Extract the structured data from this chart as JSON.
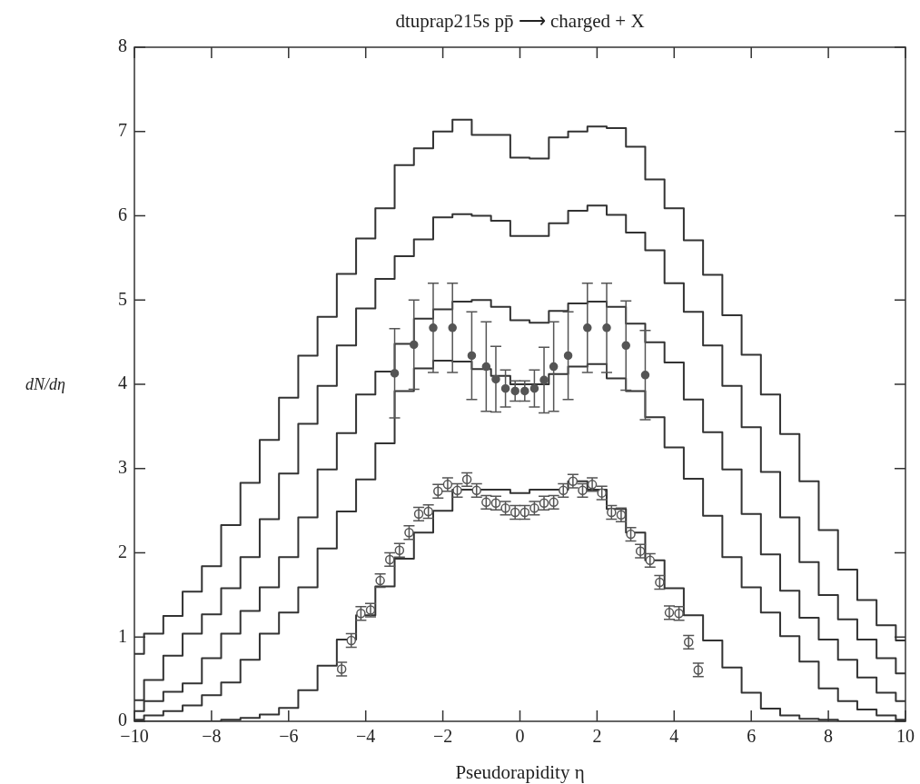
{
  "chart_data": {
    "type": "step",
    "title": "dtuprap215s pp̄ ⟶ charged + X",
    "xlabel": "Pseudorapidity η",
    "ylabel": "dN/dη",
    "xlim": [
      -10,
      10
    ],
    "xticks": [
      -10,
      -8,
      -6,
      -4,
      -2,
      0,
      2,
      4,
      6,
      8,
      10
    ],
    "ylim": [
      0,
      8
    ],
    "yticks": [
      0,
      1,
      2,
      3,
      4,
      5,
      6,
      7,
      8
    ],
    "grid": false,
    "legend": false,
    "x": [
      -10,
      -9.5,
      -9,
      -8.5,
      -8,
      -7.5,
      -7,
      -6.5,
      -6,
      -5.5,
      -5,
      -4.5,
      -4,
      -3.5,
      -3,
      -2.5,
      -2,
      -1.5,
      -1,
      -0.5,
      0,
      0.5,
      1,
      1.5,
      2,
      2.5,
      3,
      3.5,
      4,
      4.5,
      5,
      5.5,
      6,
      6.5,
      7,
      7.5,
      8,
      8.5,
      9,
      9.5,
      10
    ],
    "series": [
      {
        "color": "#333333",
        "values": [
          0.8,
          1.04,
          1.25,
          1.54,
          1.84,
          2.33,
          2.83,
          3.34,
          3.84,
          4.34,
          4.8,
          5.31,
          5.73,
          6.09,
          6.6,
          6.8,
          7.0,
          7.14,
          6.96,
          6.96,
          6.69,
          6.68,
          6.93,
          7.0,
          7.06,
          7.04,
          6.82,
          6.43,
          6.09,
          5.71,
          5.3,
          4.82,
          4.35,
          3.88,
          3.41,
          2.85,
          2.27,
          1.8,
          1.44,
          1.14,
          0.96
        ]
      },
      {
        "color": "#333333",
        "values": [
          0.25,
          0.49,
          0.78,
          1.04,
          1.27,
          1.58,
          1.95,
          2.4,
          2.94,
          3.53,
          3.98,
          4.46,
          4.9,
          5.25,
          5.52,
          5.72,
          5.98,
          6.02,
          6.0,
          5.94,
          5.76,
          5.76,
          5.91,
          6.06,
          6.12,
          6.01,
          5.8,
          5.59,
          5.2,
          4.86,
          4.46,
          3.98,
          3.49,
          2.96,
          2.42,
          1.89,
          1.5,
          1.21,
          0.97,
          0.75,
          0.57
        ]
      },
      {
        "color": "#333333",
        "values": [
          0.12,
          0.24,
          0.35,
          0.45,
          0.75,
          1.04,
          1.31,
          1.59,
          1.95,
          2.42,
          2.99,
          3.42,
          3.88,
          4.15,
          4.48,
          4.78,
          4.89,
          4.98,
          5.0,
          4.92,
          4.76,
          4.73,
          4.87,
          4.96,
          4.98,
          4.92,
          4.72,
          4.5,
          4.26,
          3.82,
          3.43,
          2.99,
          2.46,
          1.98,
          1.55,
          1.23,
          0.97,
          0.73,
          0.52,
          0.34,
          0.24
        ]
      },
      {
        "color": "#333333",
        "values": [
          0.02,
          0.07,
          0.12,
          0.19,
          0.31,
          0.46,
          0.73,
          1.04,
          1.29,
          1.59,
          2.05,
          2.49,
          2.87,
          3.3,
          3.92,
          4.19,
          4.28,
          4.27,
          4.18,
          4.1,
          4.0,
          4.0,
          4.12,
          4.21,
          4.24,
          4.07,
          3.92,
          3.61,
          3.25,
          2.88,
          2.44,
          1.95,
          1.59,
          1.29,
          1.01,
          0.71,
          0.39,
          0.24,
          0.14,
          0.07,
          0.02
        ]
      },
      {
        "color": "#333333",
        "values": [
          0,
          0,
          0,
          0,
          0,
          0.02,
          0.04,
          0.08,
          0.16,
          0.37,
          0.66,
          0.97,
          1.26,
          1.6,
          1.93,
          2.24,
          2.5,
          2.75,
          2.75,
          2.75,
          2.71,
          2.75,
          2.75,
          2.85,
          2.75,
          2.52,
          2.24,
          1.91,
          1.58,
          1.26,
          0.96,
          0.64,
          0.34,
          0.15,
          0.07,
          0.03,
          0.02,
          0,
          0,
          0,
          0
        ]
      },
      {
        "type": "scatter",
        "marker": "circle",
        "color": "#555555",
        "x": [
          -3.25,
          -2.75,
          -2.25,
          -1.75,
          -1.25,
          -0.875,
          -0.625,
          -0.375,
          -0.125,
          0.125,
          0.375,
          0.625,
          0.875,
          1.25,
          1.75,
          2.25,
          2.75,
          3.25
        ],
        "values": [
          4.13,
          4.47,
          4.67,
          4.67,
          4.34,
          4.21,
          4.06,
          3.95,
          3.92,
          3.92,
          3.95,
          4.05,
          4.21,
          4.34,
          4.67,
          4.67,
          4.46,
          4.11
        ],
        "errors": [
          0.53,
          0.53,
          0.53,
          0.53,
          0.52,
          0.53,
          0.39,
          0.22,
          0.12,
          0.12,
          0.22,
          0.39,
          0.53,
          0.52,
          0.53,
          0.53,
          0.53,
          0.53
        ]
      },
      {
        "type": "scatter",
        "marker": "circle",
        "color": "#555555",
        "x": [
          -4.625,
          -4.375,
          -4.125,
          -3.875,
          -3.625,
          -3.375,
          -3.125,
          -2.875,
          -2.625,
          -2.375,
          -2.125,
          -1.875,
          -1.625,
          -1.375,
          -1.125,
          -0.875,
          -0.625,
          -0.375,
          -0.125,
          0.125,
          0.375,
          0.625,
          0.875,
          1.125,
          1.375,
          1.625,
          1.875,
          2.125,
          2.375,
          2.625,
          2.875,
          3.125,
          3.375,
          3.625,
          3.875,
          4.125,
          4.375,
          4.625
        ],
        "values": [
          0.62,
          0.96,
          1.28,
          1.32,
          1.67,
          1.92,
          2.03,
          2.24,
          2.46,
          2.49,
          2.73,
          2.81,
          2.74,
          2.87,
          2.74,
          2.6,
          2.59,
          2.53,
          2.48,
          2.48,
          2.53,
          2.59,
          2.6,
          2.74,
          2.85,
          2.74,
          2.81,
          2.71,
          2.48,
          2.45,
          2.22,
          2.02,
          1.91,
          1.65,
          1.29,
          1.28,
          0.94,
          0.61
        ],
        "errors": [
          0.08,
          0.08,
          0.08,
          0.08,
          0.08,
          0.08,
          0.08,
          0.08,
          0.08,
          0.08,
          0.08,
          0.08,
          0.08,
          0.08,
          0.08,
          0.08,
          0.08,
          0.08,
          0.08,
          0.08,
          0.08,
          0.08,
          0.08,
          0.08,
          0.08,
          0.08,
          0.08,
          0.08,
          0.08,
          0.08,
          0.08,
          0.08,
          0.08,
          0.08,
          0.08,
          0.08,
          0.08,
          0.08
        ]
      }
    ]
  }
}
